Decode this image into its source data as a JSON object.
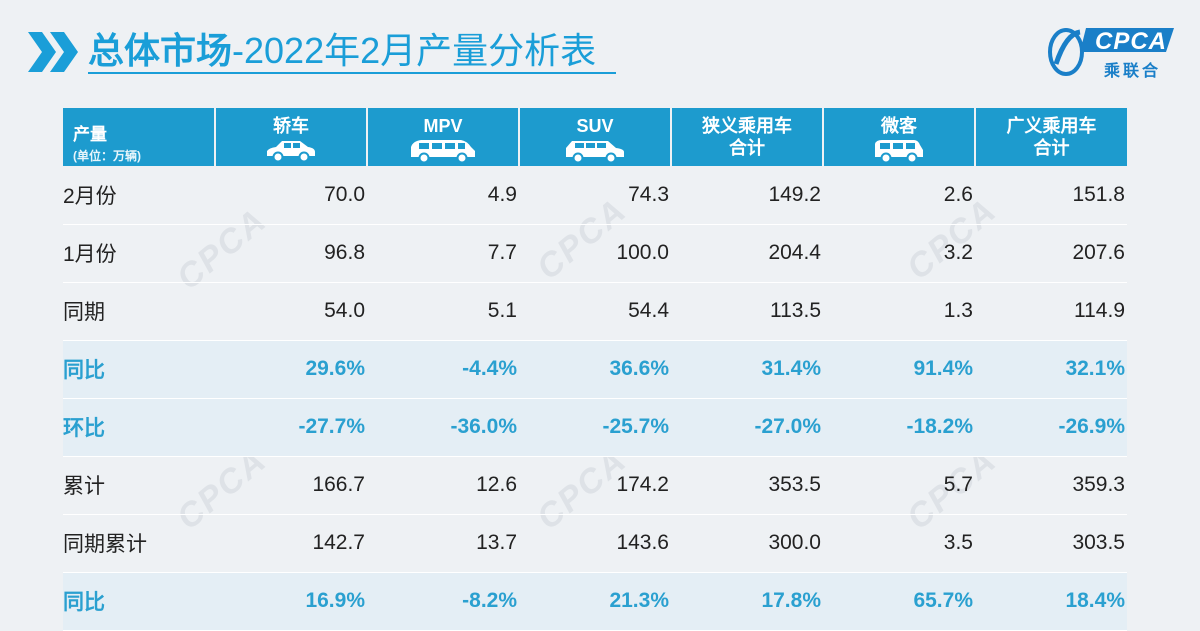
{
  "header": {
    "title_bold": "总体市场",
    "title_rest": "-2022年2月产量分析表",
    "logo_text": "CPCA",
    "logo_sub": "乘联合"
  },
  "table": {
    "corner": {
      "label": "产量",
      "unit": "(单位：万辆)"
    },
    "columns": [
      {
        "label": "轿车",
        "icon": "sedan-icon"
      },
      {
        "label": "MPV",
        "icon": "mpv-icon"
      },
      {
        "label": "SUV",
        "icon": "suv-icon"
      },
      {
        "label_line1": "狭义乘用车",
        "label_line2": "合计"
      },
      {
        "label": "微客",
        "icon": "minivan-icon"
      },
      {
        "label_line1": "广义乘用车",
        "label_line2": "合计"
      }
    ],
    "rows": [
      {
        "label": "2月份",
        "type": "plain",
        "values": [
          "70.0",
          "4.9",
          "74.3",
          "149.2",
          "2.6",
          "151.8"
        ]
      },
      {
        "label": "1月份",
        "type": "plain",
        "values": [
          "96.8",
          "7.7",
          "100.0",
          "204.4",
          "3.2",
          "207.6"
        ]
      },
      {
        "label": "同期",
        "type": "plain",
        "values": [
          "54.0",
          "5.1",
          "54.4",
          "113.5",
          "1.3",
          "114.9"
        ]
      },
      {
        "label": "同比",
        "type": "pct",
        "values": [
          "29.6%",
          "-4.4%",
          "36.6%",
          "31.4%",
          "91.4%",
          "32.1%"
        ]
      },
      {
        "label": "环比",
        "type": "pct",
        "values": [
          "-27.7%",
          "-36.0%",
          "-25.7%",
          "-27.0%",
          "-18.2%",
          "-26.9%"
        ]
      },
      {
        "label": "累计",
        "type": "plain",
        "values": [
          "166.7",
          "12.6",
          "174.2",
          "353.5",
          "5.7",
          "359.3"
        ]
      },
      {
        "label": "同期累计",
        "type": "plain",
        "values": [
          "142.7",
          "13.7",
          "143.6",
          "300.0",
          "3.5",
          "303.5"
        ]
      },
      {
        "label": "同比",
        "type": "pct",
        "values": [
          "16.9%",
          "-8.2%",
          "21.3%",
          "17.8%",
          "65.7%",
          "18.4%"
        ]
      }
    ]
  },
  "colors": {
    "accent": "#1a9ed8",
    "header_bg": "#1d9bce",
    "pct_text": "#2aa0d0",
    "pct_row_bg": "#e4eef5"
  }
}
